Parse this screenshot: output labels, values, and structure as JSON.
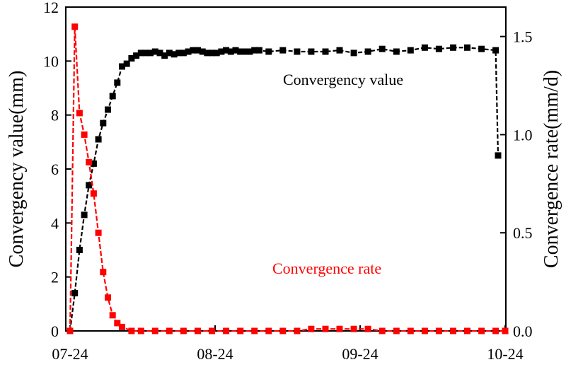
{
  "chart_data": {
    "type": "line",
    "title": "",
    "xlabel": "",
    "x_ticks": [
      "07-24",
      "08-24",
      "09-24",
      "10-24"
    ],
    "x_range_days": [
      0,
      92
    ],
    "y_left": {
      "label": "Convergency value(mm)",
      "lim": [
        0,
        12
      ],
      "ticks": [
        0,
        2,
        4,
        6,
        8,
        10,
        12
      ]
    },
    "y_right": {
      "label": "Convergence rate(mm/d)",
      "lim": [
        0,
        1.65
      ],
      "ticks": [
        "0.0",
        "0.5",
        "1.0",
        "1.5"
      ]
    },
    "annotations": {
      "value_series": "Convergency value",
      "rate_series": "Convergence rate"
    },
    "colors": {
      "value": "#000000",
      "rate": "#ff0000"
    },
    "series": [
      {
        "axis": "left",
        "color": "#000000",
        "x": [
          0,
          1,
          2,
          3,
          4,
          5,
          6,
          7,
          8,
          9,
          10,
          11,
          12,
          13,
          14,
          15,
          16,
          17,
          18,
          19,
          20,
          21,
          22,
          23,
          24,
          25,
          26,
          27,
          28,
          29,
          30,
          31,
          32,
          33,
          34,
          35,
          36,
          37,
          38,
          39,
          40,
          42,
          45,
          48,
          51,
          54,
          57,
          60,
          63,
          66,
          69,
          72,
          75,
          78,
          81,
          84,
          87,
          90,
          90.5
        ],
        "y": [
          0,
          1.4,
          3.0,
          4.3,
          5.4,
          6.2,
          7.1,
          7.7,
          8.2,
          8.7,
          9.2,
          9.8,
          9.9,
          10.1,
          10.2,
          10.3,
          10.3,
          10.3,
          10.35,
          10.3,
          10.2,
          10.3,
          10.25,
          10.3,
          10.3,
          10.35,
          10.4,
          10.4,
          10.35,
          10.3,
          10.3,
          10.3,
          10.35,
          10.4,
          10.35,
          10.4,
          10.35,
          10.35,
          10.35,
          10.4,
          10.4,
          10.35,
          10.4,
          10.35,
          10.35,
          10.35,
          10.4,
          10.3,
          10.35,
          10.45,
          10.35,
          10.4,
          10.5,
          10.45,
          10.5,
          10.5,
          10.45,
          10.4,
          6.5
        ]
      },
      {
        "axis": "right",
        "color": "#ff0000",
        "x": [
          0,
          1,
          2,
          3,
          4,
          5,
          6,
          7,
          8,
          9,
          10,
          11,
          13,
          15,
          18,
          21,
          24,
          27,
          30,
          33,
          36,
          39,
          42,
          45,
          48,
          51,
          54,
          57,
          60,
          63,
          66,
          69,
          72,
          75,
          78,
          81,
          84,
          87,
          90,
          92
        ],
        "y": [
          0,
          1.55,
          1.11,
          1.0,
          0.86,
          0.7,
          0.5,
          0.3,
          0.17,
          0.08,
          0.04,
          0.02,
          0.0,
          0.0,
          0.0,
          0.0,
          0.0,
          0.0,
          0.0,
          0.0,
          0.0,
          0.0,
          0.0,
          0.0,
          0.0,
          0.01,
          0.01,
          0.01,
          0.01,
          0.01,
          0.0,
          0.0,
          0.0,
          0.0,
          0.0,
          0.0,
          0.0,
          0.0,
          0.0,
          0.0
        ]
      }
    ]
  }
}
